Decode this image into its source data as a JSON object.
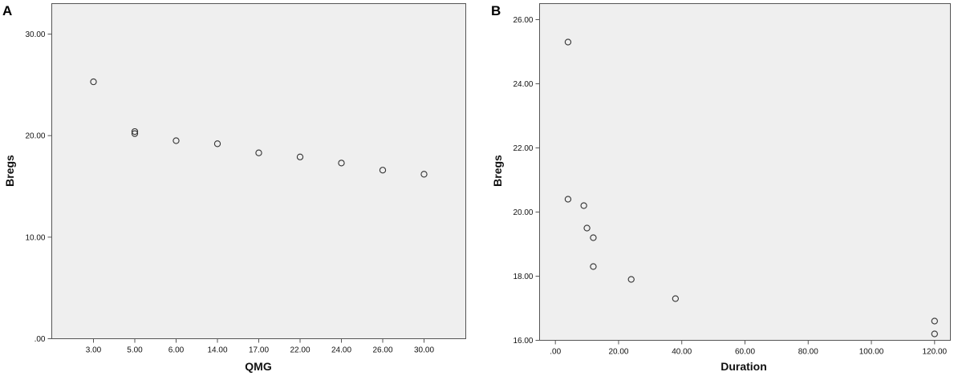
{
  "chart_data": [
    {
      "panel": "A",
      "type": "scatter",
      "x_scale": "categorical",
      "categories": [
        "3.00",
        "5.00",
        "6.00",
        "14.00",
        "17.00",
        "22.00",
        "24.00",
        "26.00",
        "30.00"
      ],
      "points": [
        {
          "x": "3.00",
          "y": 25.3
        },
        {
          "x": "5.00",
          "y": 20.4
        },
        {
          "x": "5.00",
          "y": 20.2
        },
        {
          "x": "6.00",
          "y": 19.5
        },
        {
          "x": "14.00",
          "y": 19.2
        },
        {
          "x": "17.00",
          "y": 18.3
        },
        {
          "x": "22.00",
          "y": 17.9
        },
        {
          "x": "24.00",
          "y": 17.3
        },
        {
          "x": "26.00",
          "y": 16.6
        },
        {
          "x": "30.00",
          "y": 16.2
        }
      ],
      "yticks": [
        ".00",
        "10.00",
        "20.00",
        "30.00"
      ],
      "ytick_values": [
        0,
        10,
        20,
        30
      ],
      "ylim": [
        0,
        33
      ],
      "xlabel": "QMG",
      "ylabel": "Bregs",
      "grid": false,
      "marker": "open-circle",
      "background": "#efefef"
    },
    {
      "panel": "B",
      "type": "scatter",
      "x_scale": "linear",
      "points": [
        {
          "x": 4,
          "y": 25.3
        },
        {
          "x": 4,
          "y": 20.4
        },
        {
          "x": 9,
          "y": 20.2
        },
        {
          "x": 10,
          "y": 19.5
        },
        {
          "x": 12,
          "y": 19.2
        },
        {
          "x": 12,
          "y": 18.3
        },
        {
          "x": 24,
          "y": 17.9
        },
        {
          "x": 38,
          "y": 17.3
        },
        {
          "x": 120,
          "y": 16.6
        },
        {
          "x": 120,
          "y": 16.2
        }
      ],
      "xticks": [
        ".00",
        "20.00",
        "40.00",
        "60.00",
        "80.00",
        "100.00",
        "120.00"
      ],
      "xtick_values": [
        0,
        20,
        40,
        60,
        80,
        100,
        120
      ],
      "yticks": [
        "16.00",
        "18.00",
        "20.00",
        "22.00",
        "24.00",
        "26.00"
      ],
      "ytick_values": [
        16,
        18,
        20,
        22,
        24,
        26
      ],
      "xlim": [
        -5,
        125
      ],
      "ylim": [
        16,
        26.5
      ],
      "xlabel": "Duration",
      "ylabel": "Bregs",
      "grid": false,
      "marker": "open-circle",
      "background": "#efefef"
    }
  ]
}
